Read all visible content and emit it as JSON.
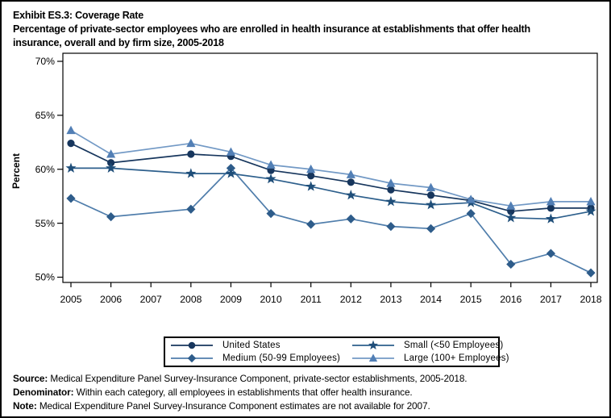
{
  "title": {
    "line1": "Exhibit ES.3: Coverage Rate",
    "line2": "Percentage of private-sector employees who are enrolled in health insurance at establishments that offer health",
    "line3": "insurance, overall and by firm size, 2005-2018"
  },
  "chart_data": {
    "type": "line",
    "x": [
      2005,
      2006,
      2007,
      2008,
      2009,
      2010,
      2011,
      2012,
      2013,
      2014,
      2015,
      2016,
      2017,
      2018
    ],
    "series": [
      {
        "name": "United States",
        "marker": "circle",
        "color": "#17365d",
        "line_color": "#17365d",
        "values": [
          62.4,
          60.6,
          null,
          61.4,
          61.2,
          59.9,
          59.4,
          58.8,
          58.1,
          57.6,
          57.1,
          56.1,
          56.4,
          56.4
        ]
      },
      {
        "name": "Small (<50 Employees)",
        "marker": "star",
        "color": "#1f4e79",
        "line_color": "#2d5f8c",
        "values": [
          60.1,
          60.1,
          null,
          59.6,
          59.6,
          59.1,
          58.4,
          57.6,
          57.0,
          56.7,
          56.9,
          55.5,
          55.4,
          56.1
        ]
      },
      {
        "name": "Medium (50-99 Employees)",
        "marker": "diamond",
        "color": "#2e5c8a",
        "line_color": "#4f7dab",
        "values": [
          57.3,
          55.6,
          null,
          56.3,
          60.1,
          55.9,
          54.9,
          55.4,
          54.7,
          54.5,
          55.9,
          51.2,
          52.2,
          50.4
        ]
      },
      {
        "name": "Large (100+ Employees)",
        "marker": "triangle",
        "color": "#527fb5",
        "line_color": "#7299c5",
        "values": [
          63.6,
          61.4,
          null,
          62.4,
          61.6,
          60.4,
          60.0,
          59.5,
          58.7,
          58.3,
          57.2,
          56.6,
          57.0,
          57.0
        ]
      }
    ],
    "xlabel": "",
    "ylabel": "Percent",
    "ylim": [
      50,
      70
    ],
    "yticks": [
      50,
      55,
      60,
      65,
      70
    ],
    "ytick_suffix": "%",
    "grid": false,
    "legend_position": "bottom-box",
    "note": "No data plotted for 2007 (values are null)"
  },
  "footer": {
    "lines": [
      {
        "label": "Source:",
        "text": " Medical Expenditure Panel Survey-Insurance Component, private-sector establishments, 2005-2018."
      },
      {
        "label": "Denominator:",
        "text": " Within each category, all employees in establishments that offer health insurance."
      },
      {
        "label": "Note:",
        "text": " Medical Expenditure Panel Survey-Insurance Component estimates are not available for 2007."
      }
    ]
  }
}
